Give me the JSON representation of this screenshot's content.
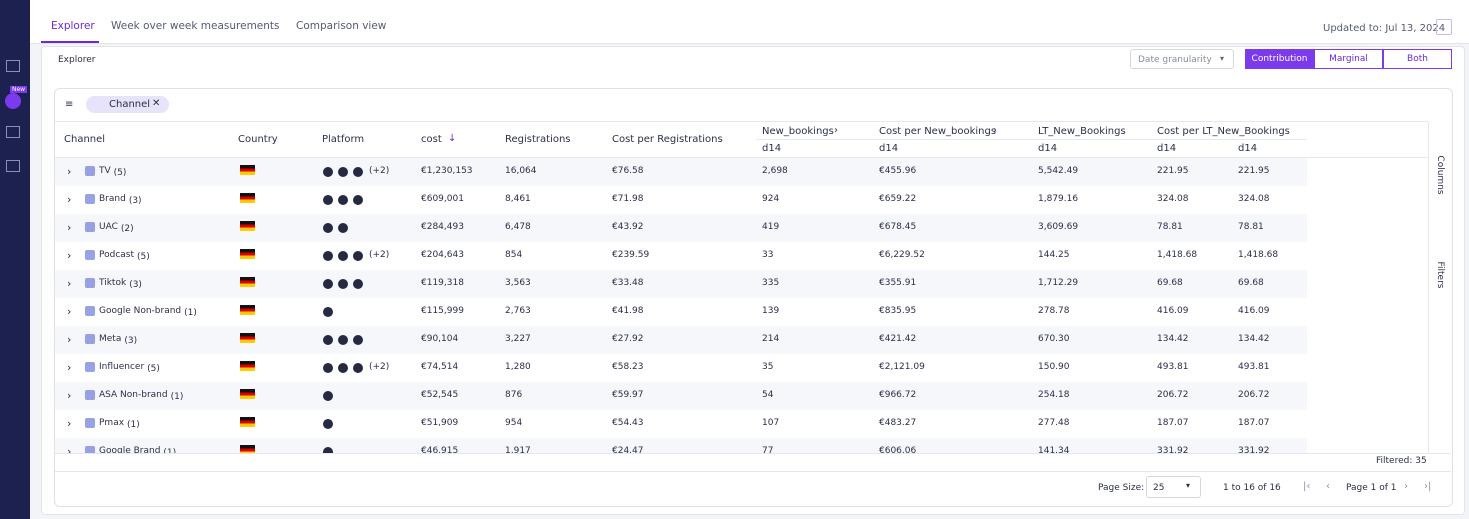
{
  "tabs": [
    "Explorer",
    "Week over week measurements",
    "Comparison view"
  ],
  "updated": "Updated to: Jul 13, 2024",
  "new_badge": "New",
  "panel_title": "Explorer",
  "date_granularity": "Date granularity",
  "modes": [
    "Contribution",
    "Marginal",
    "Both"
  ],
  "group_chip": "Channel",
  "columns": [
    "Channel",
    "Country",
    "Platform",
    "cost",
    "Registrations",
    "Cost per Registrations",
    "New_bookings",
    "Cost per New_bookings",
    "LT_New_Bookings",
    "Cost per LT_New_Bookings"
  ],
  "subheaders": [
    "d14",
    "d14",
    "d14",
    "d14",
    "d14"
  ],
  "rows": [
    {
      "channel": "TV",
      "count": "(5)",
      "platform_extra": "(+2)",
      "cells": [
        "€1,230,153",
        "16,064",
        "€76.58",
        "2,698",
        "€455.96",
        "5,542.49",
        "221.95",
        "221.95"
      ]
    },
    {
      "channel": "Brand",
      "count": "(3)",
      "cells": [
        "€609,001",
        "8,461",
        "€71.98",
        "924",
        "€659.22",
        "1,879.16",
        "324.08",
        "324.08"
      ]
    },
    {
      "channel": "UAC",
      "count": "(2)",
      "cells": [
        "€284,493",
        "6,478",
        "€43.92",
        "419",
        "€678.45",
        "3,609.69",
        "78.81",
        "78.81"
      ]
    },
    {
      "channel": "Podcast",
      "count": "(5)",
      "platform_extra": "(+2)",
      "cells": [
        "€204,643",
        "854",
        "€239.59",
        "33",
        "€6,229.52",
        "144.25",
        "1,418.68",
        "1,418.68"
      ]
    },
    {
      "channel": "Tiktok",
      "count": "(3)",
      "cells": [
        "€119,318",
        "3,563",
        "€33.48",
        "335",
        "€355.91",
        "1,712.29",
        "69.68",
        "69.68"
      ]
    },
    {
      "channel": "Google Non-brand",
      "count": "(1)",
      "cells": [
        "€115,999",
        "2,763",
        "€41.98",
        "139",
        "€835.95",
        "278.78",
        "416.09",
        "416.09"
      ]
    },
    {
      "channel": "Meta",
      "count": "(3)",
      "cells": [
        "€90,104",
        "3,227",
        "€27.92",
        "214",
        "€421.42",
        "670.30",
        "134.42",
        "134.42"
      ]
    },
    {
      "channel": "Influencer",
      "count": "(5)",
      "platform_extra": "(+2)",
      "cells": [
        "€74,514",
        "1,280",
        "€58.23",
        "35",
        "€2,121.09",
        "150.90",
        "493.81",
        "493.81"
      ]
    },
    {
      "channel": "ASA Non-brand",
      "count": "(1)",
      "cells": [
        "€52,545",
        "876",
        "€59.97",
        "54",
        "€966.72",
        "254.18",
        "206.72",
        "206.72"
      ]
    },
    {
      "channel": "Pmax",
      "count": "(1)",
      "cells": [
        "€51,909",
        "954",
        "€54.43",
        "107",
        "€483.27",
        "277.48",
        "187.07",
        "187.07"
      ]
    },
    {
      "channel": "Google Brand",
      "count": "(1)",
      "cells": [
        "€46,915",
        "1,917",
        "€24.47",
        "77",
        "€606.06",
        "141.34",
        "331.92",
        "331.92"
      ]
    }
  ],
  "side_tabs": [
    "Columns",
    "Filters"
  ],
  "filtered": "Filtered: 35",
  "page_size_label": "Page Size:",
  "page_size": "25",
  "range": "1 to 16 of 16",
  "page": "Page 1 of 1"
}
